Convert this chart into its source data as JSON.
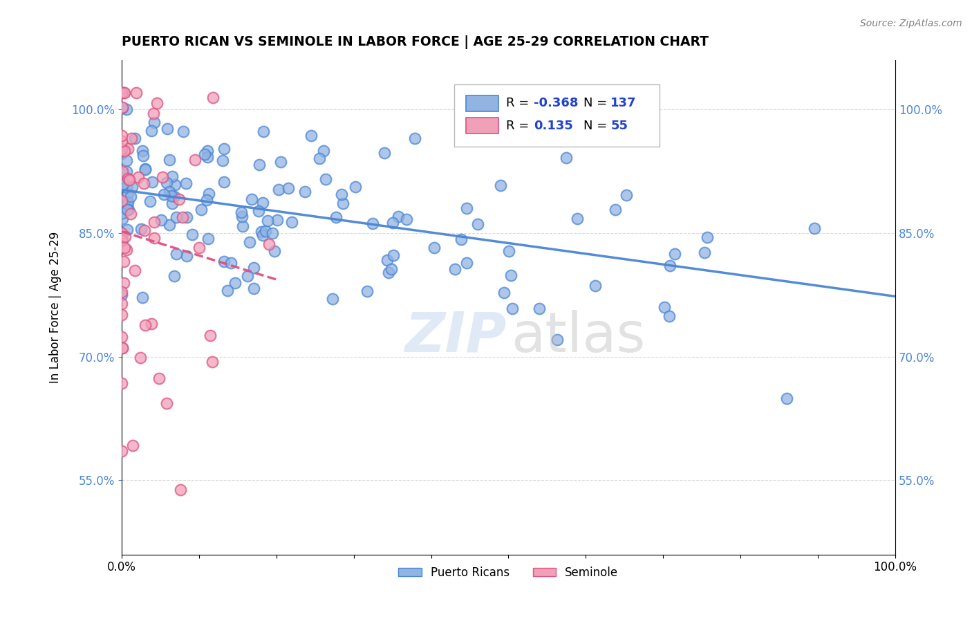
{
  "title": "PUERTO RICAN VS SEMINOLE IN LABOR FORCE | AGE 25-29 CORRELATION CHART",
  "source_text": "Source: ZipAtlas.com",
  "ylabel": "In Labor Force | Age 25-29",
  "xlim": [
    0.0,
    1.0
  ],
  "ylim": [
    0.46,
    1.06
  ],
  "yticks": [
    0.55,
    0.7,
    0.85,
    1.0
  ],
  "ytick_labels": [
    "55.0%",
    "70.0%",
    "85.0%",
    "100.0%"
  ],
  "blue_color": "#92b4e3",
  "pink_color": "#f0a0b8",
  "blue_line_color": "#4a86d4",
  "pink_line_color": "#e05080",
  "legend_r_blue": "-0.368",
  "legend_n_blue": "137",
  "legend_r_pink": "0.135",
  "legend_n_pink": "55",
  "r_blue": -0.368,
  "n_blue": 137,
  "r_pink": 0.135,
  "n_pink": 55,
  "tick_color": "#4a86d4",
  "grid_color": "#cccccc",
  "watermark_zip_color": "#c8d8f0",
  "watermark_atlas_color": "#c0c0c0"
}
